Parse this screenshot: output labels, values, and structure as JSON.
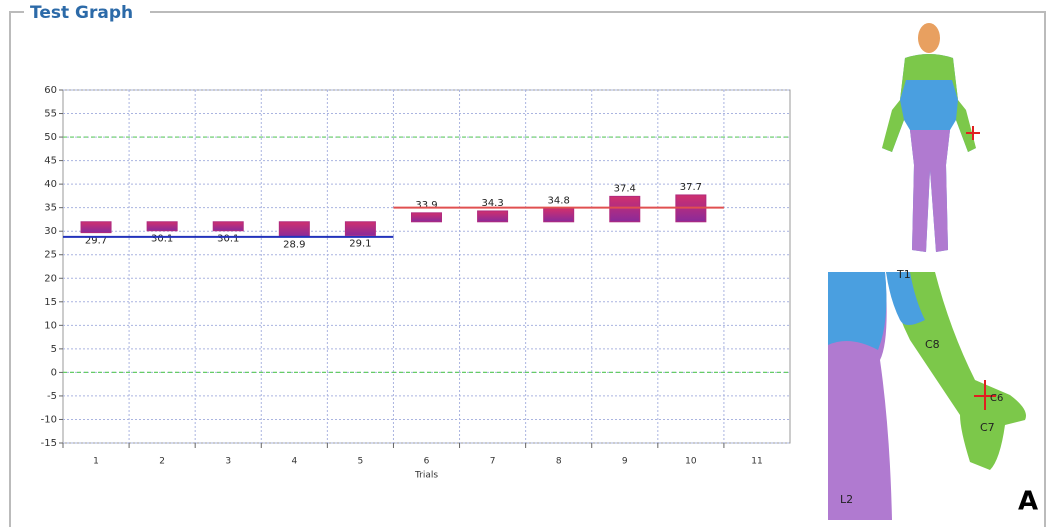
{
  "panel": {
    "title": "Test Graph"
  },
  "chart_data": {
    "type": "bar",
    "x_label": "Trials",
    "categories": [
      "1",
      "2",
      "3",
      "4",
      "5",
      "6",
      "7",
      "8",
      "9",
      "10",
      "11"
    ],
    "values": [
      29.7,
      30.1,
      30.1,
      28.9,
      29.1,
      33.9,
      34.3,
      34.8,
      37.4,
      37.7,
      null
    ],
    "bar_base": 32,
    "color": "#b02a7e",
    "ylim": [
      -15,
      60
    ],
    "yticks": [
      -15,
      -10,
      -5,
      0,
      5,
      10,
      15,
      20,
      25,
      30,
      35,
      40,
      45,
      50,
      55,
      60
    ],
    "grid": true,
    "reference_lines": [
      {
        "value": 28.8,
        "color": "#2233bb",
        "start_category": "1",
        "end_category": "5"
      },
      {
        "value": 35,
        "color": "#e05050",
        "start_category": "6",
        "end_category": "10"
      }
    ],
    "highlight_lines": [
      0,
      50
    ],
    "highlight_color": "#66cc66"
  },
  "figure": {
    "labels": [
      "T1",
      "C8",
      "C6",
      "C7",
      "L2"
    ],
    "panel_label": "A"
  }
}
